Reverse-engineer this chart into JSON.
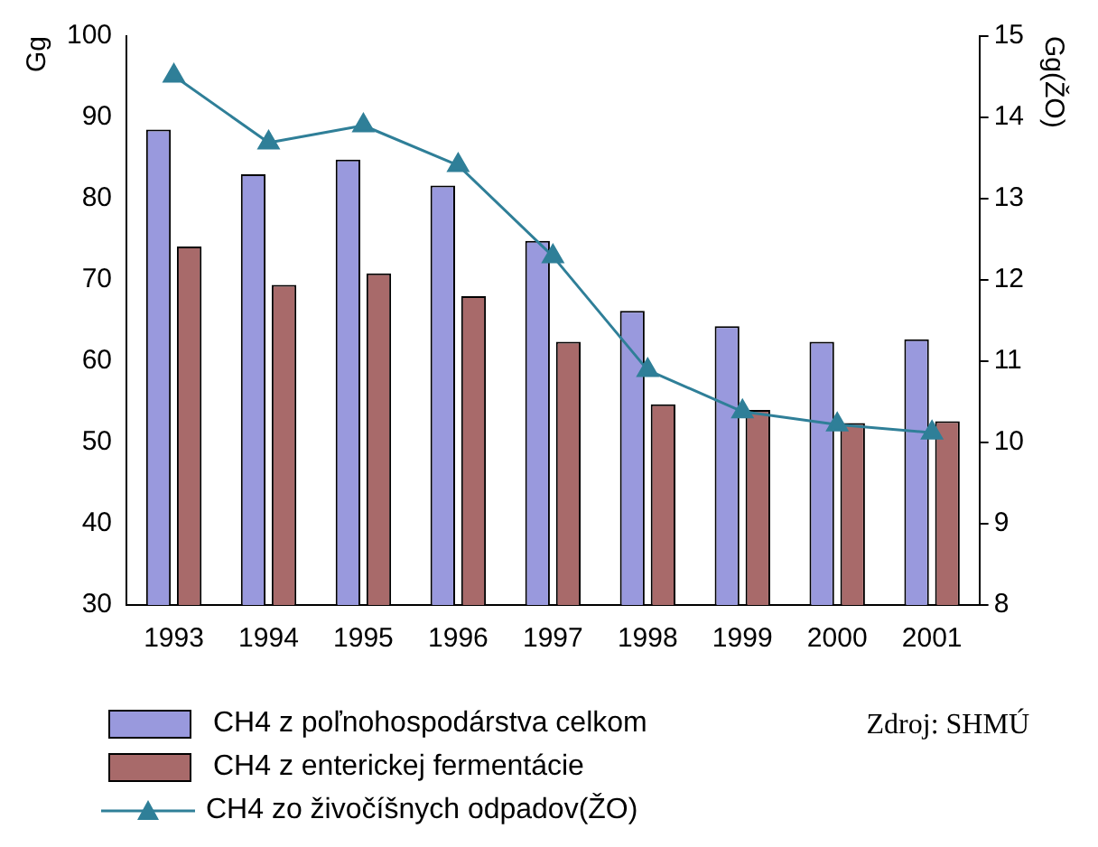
{
  "chart_data": {
    "type": "bar",
    "categories": [
      "1993",
      "1994",
      "1995",
      "1996",
      "1997",
      "1998",
      "1999",
      "2000",
      "2001"
    ],
    "series": [
      {
        "name": "CH4 z poľnohospodárstva celkom",
        "color": "#9999dd",
        "values": [
          88.5,
          83,
          84.8,
          81.6,
          74.8,
          66.2,
          64.3,
          62.4,
          62.7
        ]
      },
      {
        "name": "CH4 z enterickej fermentácie",
        "color": "#a86a6a",
        "values": [
          74.1,
          69.4,
          70.8,
          68,
          62.4,
          54.7,
          54,
          52.4,
          52.6
        ]
      },
      {
        "name": "CH4 zo živočíšnych odpadov(ŽO)",
        "type": "line",
        "axis": "y2",
        "color": "#2f7f98",
        "marker": "triangle",
        "values": [
          14.51,
          13.69,
          13.9,
          13.41,
          12.29,
          10.89,
          10.38,
          10.22,
          10.12
        ]
      }
    ],
    "ylabel": "Gg",
    "y2label": "Gg(ŽO)",
    "ylim": [
      30,
      100
    ],
    "yticks": [
      30,
      40,
      50,
      60,
      70,
      80,
      90,
      100
    ],
    "y2lim": [
      8,
      15
    ],
    "y2ticks": [
      8,
      9,
      10,
      11,
      12,
      13,
      14,
      15
    ],
    "grid": false,
    "legend": "bottom",
    "annotations": [
      "Zdroj: SHMÚ"
    ]
  }
}
